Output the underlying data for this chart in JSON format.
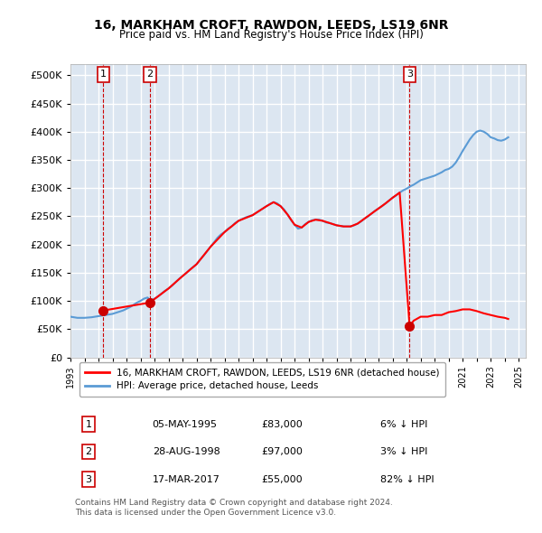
{
  "title": "16, MARKHAM CROFT, RAWDON, LEEDS, LS19 6NR",
  "subtitle": "Price paid vs. HM Land Registry's House Price Index (HPI)",
  "ylabel": "",
  "ylim": [
    0,
    520000
  ],
  "yticks": [
    0,
    50000,
    100000,
    150000,
    200000,
    250000,
    300000,
    350000,
    400000,
    450000,
    500000
  ],
  "ytick_labels": [
    "£0",
    "£50K",
    "£100K",
    "£150K",
    "£200K",
    "£250K",
    "£300K",
    "£350K",
    "£400K",
    "£450K",
    "£500K"
  ],
  "bg_color": "#dce6f1",
  "plot_bg_color": "#dce6f1",
  "grid_color": "#ffffff",
  "hpi_color": "#5b9bd5",
  "price_color": "#ff0000",
  "sale_dot_color": "#cc0000",
  "transactions": [
    {
      "date": 1995.35,
      "price": 83000,
      "label": "1"
    },
    {
      "date": 1998.66,
      "price": 97000,
      "label": "2"
    },
    {
      "date": 2017.21,
      "price": 55000,
      "label": "3"
    }
  ],
  "legend_property": "16, MARKHAM CROFT, RAWDON, LEEDS, LS19 6NR (detached house)",
  "legend_hpi": "HPI: Average price, detached house, Leeds",
  "table_rows": [
    {
      "num": "1",
      "date": "05-MAY-1995",
      "price": "£83,000",
      "note": "6% ↓ HPI"
    },
    {
      "num": "2",
      "date": "28-AUG-1998",
      "price": "£97,000",
      "note": "3% ↓ HPI"
    },
    {
      "num": "3",
      "date": "17-MAR-2017",
      "price": "£55,000",
      "note": "82% ↓ HPI"
    }
  ],
  "footer": "Contains HM Land Registry data © Crown copyright and database right 2024.\nThis data is licensed under the Open Government Licence v3.0.",
  "hpi_data_x": [
    1993,
    1993.25,
    1993.5,
    1993.75,
    1994,
    1994.25,
    1994.5,
    1994.75,
    1995,
    1995.25,
    1995.5,
    1995.75,
    1996,
    1996.25,
    1996.5,
    1996.75,
    1997,
    1997.25,
    1997.5,
    1997.75,
    1998,
    1998.25,
    1998.5,
    1998.75,
    1999,
    1999.25,
    1999.5,
    1999.75,
    2000,
    2000.25,
    2000.5,
    2000.75,
    2001,
    2001.25,
    2001.5,
    2001.75,
    2002,
    2002.25,
    2002.5,
    2002.75,
    2003,
    2003.25,
    2003.5,
    2003.75,
    2004,
    2004.25,
    2004.5,
    2004.75,
    2005,
    2005.25,
    2005.5,
    2005.75,
    2006,
    2006.25,
    2006.5,
    2006.75,
    2007,
    2007.25,
    2007.5,
    2007.75,
    2008,
    2008.25,
    2008.5,
    2008.75,
    2009,
    2009.25,
    2009.5,
    2009.75,
    2010,
    2010.25,
    2010.5,
    2010.75,
    2011,
    2011.25,
    2011.5,
    2011.75,
    2012,
    2012.25,
    2012.5,
    2012.75,
    2013,
    2013.25,
    2013.5,
    2013.75,
    2014,
    2014.25,
    2014.5,
    2014.75,
    2015,
    2015.25,
    2015.5,
    2015.75,
    2016,
    2016.25,
    2016.5,
    2016.75,
    2017,
    2017.25,
    2017.5,
    2017.75,
    2018,
    2018.25,
    2018.5,
    2018.75,
    2019,
    2019.25,
    2019.5,
    2019.75,
    2020,
    2020.25,
    2020.5,
    2020.75,
    2021,
    2021.25,
    2021.5,
    2021.75,
    2022,
    2022.25,
    2022.5,
    2022.75,
    2023,
    2023.25,
    2023.5,
    2023.75,
    2024,
    2024.25
  ],
  "hpi_data_y": [
    72000,
    71000,
    70000,
    70000,
    70000,
    70500,
    71000,
    72000,
    73000,
    74000,
    75000,
    76000,
    77000,
    79000,
    81000,
    83000,
    86000,
    89000,
    93000,
    97000,
    100000,
    104000,
    106000,
    100000,
    104000,
    108000,
    113000,
    118000,
    122000,
    127000,
    133000,
    139000,
    144000,
    149000,
    155000,
    160000,
    165000,
    173000,
    180000,
    188000,
    196000,
    204000,
    212000,
    218000,
    222000,
    228000,
    232000,
    238000,
    242000,
    245000,
    248000,
    250000,
    252000,
    256000,
    260000,
    264000,
    268000,
    272000,
    275000,
    273000,
    268000,
    262000,
    253000,
    243000,
    235000,
    228000,
    230000,
    236000,
    240000,
    243000,
    244000,
    244000,
    242000,
    239000,
    238000,
    236000,
    234000,
    233000,
    232000,
    232000,
    232000,
    234000,
    237000,
    241000,
    246000,
    250000,
    255000,
    260000,
    264000,
    268000,
    273000,
    278000,
    283000,
    287000,
    292000,
    296000,
    299000,
    303000,
    306000,
    310000,
    314000,
    316000,
    318000,
    320000,
    322000,
    325000,
    328000,
    332000,
    334000,
    338000,
    345000,
    355000,
    366000,
    376000,
    386000,
    394000,
    400000,
    402000,
    400000,
    396000,
    390000,
    388000,
    385000,
    384000,
    386000,
    390000
  ],
  "price_line_x": [
    1995.35,
    1995.35,
    1998.66,
    1998.66,
    2000,
    2001,
    2002,
    2003,
    2004,
    2005,
    2006,
    2006.5,
    2007,
    2007.5,
    2008,
    2008.5,
    2009,
    2009.5,
    2010,
    2010.5,
    2011,
    2011.5,
    2012,
    2012.5,
    2013,
    2013.5,
    2014,
    2014.5,
    2015,
    2015.5,
    2016,
    2016.5,
    2017.21,
    2017.21,
    2017.5,
    2018,
    2018.5,
    2019,
    2019.5,
    2020,
    2020.5,
    2021,
    2021.5,
    2022,
    2022.5,
    2023,
    2023.5,
    2024,
    2024.25
  ],
  "price_line_y": [
    83000,
    83000,
    97000,
    97000,
    122000,
    144000,
    165000,
    196000,
    222000,
    242000,
    252000,
    260000,
    268000,
    275000,
    268000,
    253000,
    235000,
    230000,
    240000,
    244000,
    242000,
    238000,
    234000,
    232000,
    232000,
    237000,
    246000,
    255000,
    264000,
    273000,
    283000,
    292000,
    55000,
    55000,
    65000,
    72000,
    72000,
    75000,
    75000,
    80000,
    82000,
    85000,
    85000,
    82000,
    78000,
    75000,
    72000,
    70000,
    68000
  ]
}
